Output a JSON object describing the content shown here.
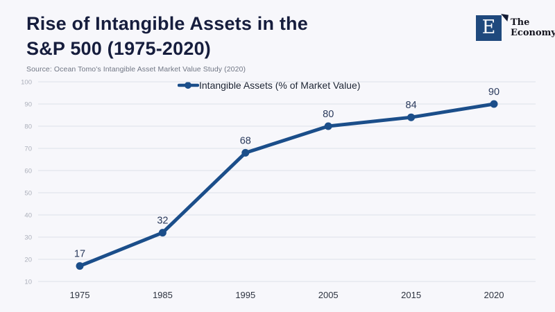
{
  "page": {
    "background": "#f7f7fb"
  },
  "header": {
    "title_line1": "Rise of Intangible Assets in the",
    "title_line2": "S&P 500 (1975-2020)",
    "source": "Source: Ocean Tomo's Intangible Asset Market Value Study (2020)"
  },
  "logo": {
    "letter": "E",
    "name_line1": "The",
    "name_line2": "Economy"
  },
  "chart_data": {
    "type": "line",
    "title": "Rise of Intangible Assets in the S&P 500 (1975-2020)",
    "categories": [
      "1975",
      "1985",
      "1995",
      "2005",
      "2015",
      "2020"
    ],
    "series": [
      {
        "name": "Intangible Assets (% of Market Value)",
        "values": [
          17,
          32,
          68,
          80,
          84,
          90
        ]
      }
    ],
    "ylim": [
      10,
      100
    ],
    "y_ticks": [
      100,
      90,
      80,
      70,
      60,
      50,
      40,
      30,
      20,
      10
    ],
    "grid": "horizontal",
    "legend_position": "top-center",
    "data_labels": true,
    "colors": {
      "line": "#1b4e8a",
      "grid": "#dee2e9",
      "y_tick_label": "#abafba",
      "x_tick_label": "#2d3340",
      "data_label": "#2a3a5c",
      "legend_text": "#1c2433"
    }
  }
}
